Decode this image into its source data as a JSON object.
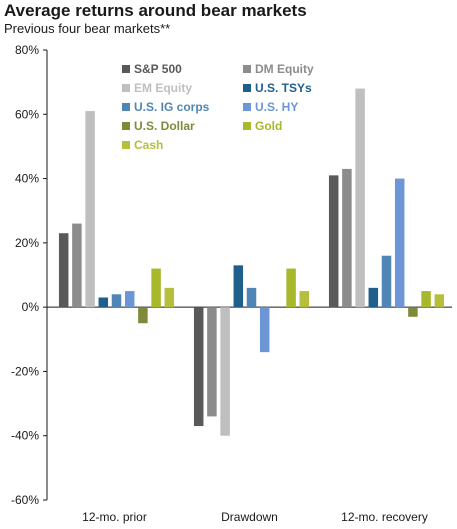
{
  "chart_data": {
    "type": "bar",
    "title": "Average returns around bear markets",
    "subtitle": "Previous four bear markets**",
    "xlabel": "",
    "ylabel": "",
    "categories": [
      "12-mo. prior",
      "Drawdown",
      "12-mo. recovery"
    ],
    "ylim": [
      -60,
      80
    ],
    "yticks": [
      -60,
      -40,
      -20,
      0,
      20,
      40,
      60,
      80
    ],
    "ytick_labels": [
      "-60%",
      "-40%",
      "-20%",
      "0%",
      "20%",
      "40%",
      "60%",
      "80%"
    ],
    "grid": false,
    "legend_position": "top-left",
    "series": [
      {
        "name": "S&P 500",
        "color": "#595959",
        "values": [
          23,
          -37,
          41
        ]
      },
      {
        "name": "DM Equity",
        "color": "#8c8c8c",
        "values": [
          26,
          -34,
          43
        ]
      },
      {
        "name": "EM Equity",
        "color": "#bfbfbf",
        "values": [
          61,
          -40,
          68
        ]
      },
      {
        "name": "U.S. TSYs",
        "color": "#1f5f8b",
        "values": [
          3,
          13,
          6
        ]
      },
      {
        "name": "U.S. IG corps",
        "color": "#4f86b5",
        "values": [
          4,
          6,
          16
        ]
      },
      {
        "name": "U.S. HY",
        "color": "#6c96d6",
        "values": [
          5,
          -14,
          40
        ]
      },
      {
        "name": "U.S. Dollar",
        "color": "#7f8a3a",
        "values": [
          -5,
          0,
          -3
        ]
      },
      {
        "name": "Gold",
        "color": "#a8b82c",
        "values": [
          12,
          12,
          5
        ]
      },
      {
        "name": "Cash",
        "color": "#b5be3d",
        "values": [
          6,
          5,
          4
        ]
      }
    ]
  }
}
